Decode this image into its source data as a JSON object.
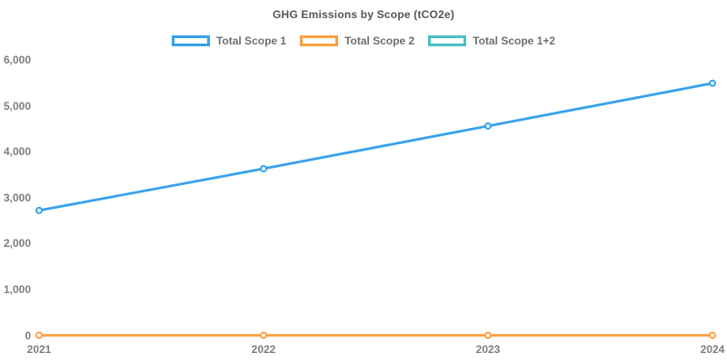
{
  "chart_data": {
    "type": "line",
    "title": "GHG Emissions by Scope (tCO2e)",
    "categories": [
      "2021",
      "2022",
      "2023",
      "2024"
    ],
    "series": [
      {
        "name": "Total Scope 1",
        "color": "#36A2EB",
        "values": [
          2720,
          3630,
          4560,
          5490
        ],
        "visible": true
      },
      {
        "name": "Total Scope 2",
        "color": "#FF9F40",
        "values": [
          0,
          0,
          0,
          0
        ],
        "visible": true
      },
      {
        "name": "Total Scope 1+2",
        "color": "#4BC0C0",
        "values": [
          2720,
          3630,
          4560,
          5490
        ],
        "visible": false,
        "note": "not visible in plot; coincides with Total Scope 1 since Scope 2 is 0"
      }
    ],
    "y_ticks": [
      {
        "value": 0,
        "label": "0"
      },
      {
        "value": 1000,
        "label": "1,000"
      },
      {
        "value": 2000,
        "label": "2,000"
      },
      {
        "value": 3000,
        "label": "3,000"
      },
      {
        "value": 4000,
        "label": "4,000"
      },
      {
        "value": 5000,
        "label": "5,000"
      },
      {
        "value": 6000,
        "label": "6,000"
      }
    ],
    "ylim": [
      0,
      6000
    ],
    "grid": false,
    "legend_position": "top",
    "marker_style": "hollow-circle",
    "background_color": "#ffffff"
  }
}
